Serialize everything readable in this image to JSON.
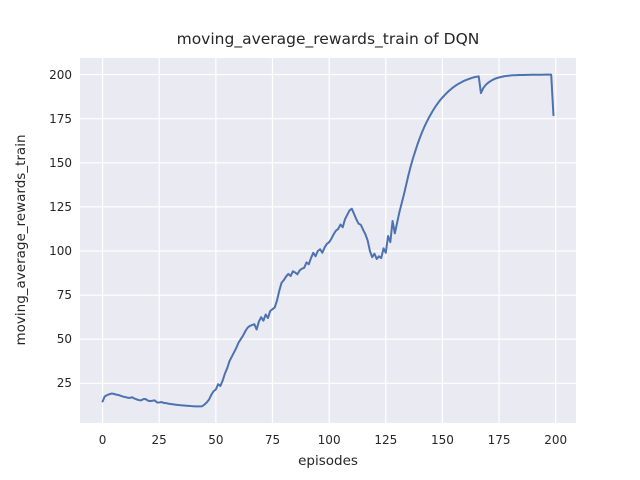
{
  "figure": {
    "background": "#FFFFFF"
  },
  "chart_data": {
    "type": "line",
    "title": "moving_average_rewards_train of DQN",
    "xlabel": "episodes",
    "ylabel": "moving_average_rewards_train",
    "x_ticks": [
      0,
      25,
      50,
      75,
      100,
      125,
      150,
      175,
      200
    ],
    "y_ticks": [
      25,
      50,
      75,
      100,
      125,
      150,
      175,
      200
    ],
    "xlim": [
      -9.95,
      208.95
    ],
    "ylim": [
      2.5,
      209.4
    ],
    "grid": true,
    "legend": false,
    "plot_bg": "#EAEAF2",
    "grid_color": "#FFFFFF",
    "text_color": "#262626",
    "series": [
      {
        "name": "moving_average_rewards_train",
        "color": "#4C72B0",
        "x_start": 0,
        "x_step": 1,
        "values": [
          14.7,
          17.6,
          18.3,
          18.8,
          19.2,
          19.0,
          18.6,
          18.4,
          17.9,
          17.5,
          17.2,
          16.9,
          16.7,
          17.1,
          16.4,
          15.9,
          15.5,
          15.3,
          16.0,
          16.1,
          15.2,
          14.9,
          15.1,
          15.3,
          14.2,
          14.1,
          14.4,
          13.9,
          13.8,
          13.5,
          13.3,
          13.1,
          12.9,
          12.8,
          12.6,
          12.5,
          12.4,
          12.3,
          12.2,
          12.1,
          12.0,
          11.9,
          11.9,
          11.9,
          12.0,
          13.0,
          14.2,
          15.8,
          18.5,
          20.5,
          21.5,
          24.5,
          23.5,
          26.5,
          30.5,
          33.5,
          37.5,
          40.0,
          42.5,
          45.0,
          48.0,
          50.0,
          52.0,
          54.5,
          56.5,
          57.5,
          58.0,
          58.5,
          55.5,
          60.0,
          62.5,
          60.5,
          64.0,
          62.0,
          66.0,
          67.0,
          68.0,
          72.0,
          77.5,
          82.0,
          83.5,
          85.5,
          87.0,
          85.8,
          88.5,
          87.8,
          86.8,
          89.0,
          90.0,
          90.5,
          93.5,
          92.5,
          96.0,
          99.0,
          97.0,
          100.0,
          101.0,
          99.0,
          102.0,
          104.0,
          105.0,
          107.0,
          109.5,
          111.5,
          112.5,
          115.0,
          113.5,
          118.0,
          120.5,
          123.0,
          124.0,
          121.0,
          118.0,
          115.5,
          114.8,
          112.0,
          109.5,
          106.0,
          100.0,
          96.5,
          98.5,
          95.5,
          97.0,
          96.0,
          101.5,
          99.0,
          108.5,
          105.0,
          117.0,
          110.0,
          116.0,
          122.0,
          127.0,
          132.0,
          137.5,
          143.0,
          148.0,
          152.5,
          156.5,
          160.5,
          164.0,
          167.3,
          170.3,
          173.0,
          175.5,
          177.8,
          180.0,
          182.0,
          183.8,
          185.5,
          187.0,
          188.4,
          189.7,
          190.9,
          192.0,
          193.0,
          193.9,
          194.7,
          195.4,
          196.1,
          196.7,
          197.2,
          197.7,
          198.1,
          198.5,
          198.8,
          199.0,
          189.5,
          192.3,
          194.0,
          195.2,
          196.1,
          196.9,
          197.5,
          198.0,
          198.4,
          198.7,
          199.0,
          199.2,
          199.35,
          199.5,
          199.6,
          199.65,
          199.7,
          199.75,
          199.78,
          199.8,
          199.83,
          199.85,
          199.87,
          199.89,
          199.9,
          199.92,
          199.93,
          199.94,
          199.95,
          199.96,
          199.97,
          199.98,
          177.0
        ]
      }
    ]
  }
}
